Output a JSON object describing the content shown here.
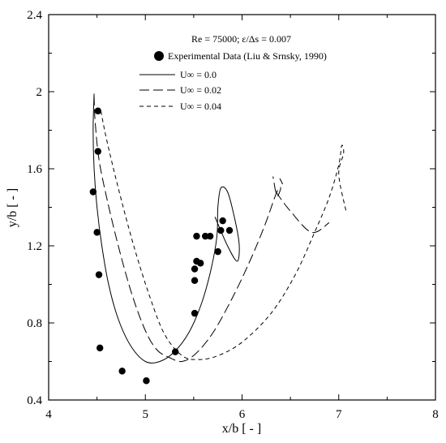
{
  "chart_data": {
    "type": "scatter",
    "xlabel": "x/b [ - ]",
    "ylabel": "y/b [ - ]",
    "xlim": [
      4,
      8
    ],
    "ylim": [
      0.4,
      2.4
    ],
    "x_ticks": [
      "4",
      "5",
      "6",
      "7",
      "8"
    ],
    "y_ticks": [
      "0.4",
      "0.8",
      "1.2",
      "1.6",
      "2",
      "2.4"
    ],
    "grid": false,
    "legend_position": "top-center",
    "legend_header": "Re = 75000; ε/Δs = 0.007",
    "series": [
      {
        "name": "Experimental Data (Liu & Srnsky, 1990)",
        "kind": "markers",
        "points": [
          [
            4.51,
            1.9
          ],
          [
            4.51,
            1.69
          ],
          [
            4.46,
            1.48
          ],
          [
            4.5,
            1.27
          ],
          [
            4.52,
            1.05
          ],
          [
            4.53,
            0.67
          ],
          [
            4.76,
            0.55
          ],
          [
            5.01,
            0.5
          ],
          [
            5.31,
            0.65
          ],
          [
            5.51,
            0.85
          ],
          [
            5.51,
            1.02
          ],
          [
            5.51,
            1.08
          ],
          [
            5.53,
            1.12
          ],
          [
            5.57,
            1.11
          ],
          [
            5.53,
            1.25
          ],
          [
            5.62,
            1.25
          ],
          [
            5.67,
            1.25
          ],
          [
            5.75,
            1.17
          ],
          [
            5.78,
            1.28
          ],
          [
            5.8,
            1.33
          ],
          [
            5.87,
            1.28
          ]
        ]
      },
      {
        "name": "U∞ = 0.0",
        "kind": "solid",
        "points": [
          [
            4.47,
            1.99
          ],
          [
            4.46,
            1.8
          ],
          [
            4.47,
            1.6
          ],
          [
            4.5,
            1.4
          ],
          [
            4.55,
            1.2
          ],
          [
            4.62,
            1.0
          ],
          [
            4.72,
            0.82
          ],
          [
            4.85,
            0.68
          ],
          [
            5.0,
            0.6
          ],
          [
            5.15,
            0.6
          ],
          [
            5.3,
            0.65
          ],
          [
            5.45,
            0.75
          ],
          [
            5.58,
            0.9
          ],
          [
            5.68,
            1.08
          ],
          [
            5.74,
            1.25
          ],
          [
            5.75,
            1.4
          ],
          [
            5.78,
            1.5
          ],
          [
            5.85,
            1.48
          ],
          [
            5.92,
            1.35
          ],
          [
            5.97,
            1.21
          ],
          [
            5.95,
            1.12
          ],
          [
            5.85,
            1.2
          ],
          [
            5.72,
            1.35
          ]
        ]
      },
      {
        "name": "U∞ = 0.02",
        "kind": "long-dash",
        "points": [
          [
            4.47,
            1.98
          ],
          [
            4.48,
            1.85
          ],
          [
            4.52,
            1.65
          ],
          [
            4.6,
            1.45
          ],
          [
            4.72,
            1.2
          ],
          [
            4.86,
            0.95
          ],
          [
            5.0,
            0.76
          ],
          [
            5.12,
            0.66
          ],
          [
            5.25,
            0.62
          ],
          [
            5.38,
            0.6
          ],
          [
            5.52,
            0.64
          ],
          [
            5.7,
            0.75
          ],
          [
            5.9,
            0.93
          ],
          [
            6.08,
            1.12
          ],
          [
            6.23,
            1.3
          ],
          [
            6.36,
            1.48
          ],
          [
            6.4,
            1.5
          ],
          [
            6.36,
            1.46
          ],
          [
            6.32,
            1.56
          ]
        ]
      },
      {
        "name": "U∞ = 0.04",
        "kind": "short-dash",
        "points": [
          [
            4.54,
            1.9
          ],
          [
            4.6,
            1.75
          ],
          [
            4.72,
            1.5
          ],
          [
            4.88,
            1.2
          ],
          [
            5.05,
            0.93
          ],
          [
            5.2,
            0.74
          ],
          [
            5.38,
            0.63
          ],
          [
            5.55,
            0.61
          ],
          [
            5.75,
            0.63
          ],
          [
            6.0,
            0.7
          ],
          [
            6.3,
            0.85
          ],
          [
            6.55,
            1.05
          ],
          [
            6.75,
            1.27
          ],
          [
            6.9,
            1.45
          ],
          [
            7.0,
            1.62
          ],
          [
            7.03,
            1.72
          ],
          [
            7.05,
            1.68
          ],
          [
            7.0,
            1.57
          ],
          [
            7.08,
            1.37
          ]
        ]
      },
      {
        "name": "",
        "kind": "long-dash",
        "points": [
          [
            6.35,
            1.48
          ],
          [
            6.5,
            1.38
          ],
          [
            6.72,
            1.27
          ],
          [
            6.9,
            1.32
          ]
        ]
      },
      {
        "name": "",
        "kind": "long-dash",
        "points": [
          [
            6.39,
            1.55
          ],
          [
            6.42,
            1.52
          ]
        ]
      }
    ]
  }
}
